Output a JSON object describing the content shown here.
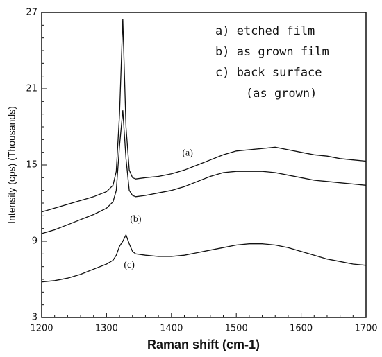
{
  "chart_data": {
    "type": "line",
    "xlabel": "Raman shift (cm-1)",
    "ylabel": "Intensity (cps) (Thousands)",
    "x": [
      1200,
      1220,
      1240,
      1260,
      1280,
      1300,
      1310,
      1315,
      1320,
      1325,
      1330,
      1335,
      1340,
      1345,
      1360,
      1380,
      1400,
      1420,
      1440,
      1460,
      1480,
      1500,
      1520,
      1540,
      1560,
      1580,
      1600,
      1620,
      1640,
      1660,
      1680,
      1700
    ],
    "series": [
      {
        "name": "a) etched film",
        "label": "(a)",
        "color": "#111111",
        "values": [
          11.3,
          11.6,
          11.9,
          12.2,
          12.5,
          12.9,
          13.4,
          14.5,
          19.0,
          26.5,
          18.0,
          14.6,
          14.0,
          13.9,
          14.0,
          14.1,
          14.3,
          14.6,
          15.0,
          15.4,
          15.8,
          16.1,
          16.2,
          16.3,
          16.4,
          16.2,
          16.0,
          15.8,
          15.7,
          15.5,
          15.4,
          15.3
        ]
      },
      {
        "name": "b) as grown film",
        "label": "(b)",
        "color": "#111111",
        "values": [
          9.6,
          9.9,
          10.3,
          10.7,
          11.1,
          11.6,
          12.1,
          13.0,
          16.5,
          19.3,
          15.5,
          13.0,
          12.6,
          12.5,
          12.6,
          12.8,
          13.0,
          13.3,
          13.7,
          14.1,
          14.4,
          14.5,
          14.5,
          14.5,
          14.4,
          14.2,
          14.0,
          13.8,
          13.7,
          13.6,
          13.5,
          13.4
        ]
      },
      {
        "name": "c) back surface",
        "label": "(c)",
        "color": "#111111",
        "values": [
          5.8,
          5.9,
          6.1,
          6.4,
          6.8,
          7.2,
          7.5,
          7.9,
          8.6,
          9.0,
          9.5,
          8.8,
          8.2,
          8.0,
          7.9,
          7.8,
          7.8,
          7.9,
          8.1,
          8.3,
          8.5,
          8.7,
          8.8,
          8.8,
          8.7,
          8.5,
          8.2,
          7.9,
          7.6,
          7.4,
          7.2,
          7.1
        ]
      }
    ],
    "annotation": "(as grown)",
    "xlim": [
      1200,
      1700
    ],
    "xticks": [
      1200,
      1300,
      1400,
      1500,
      1600,
      1700
    ],
    "ylim": [
      3,
      27
    ],
    "yticks": [
      3,
      9,
      15,
      21,
      27
    ]
  }
}
